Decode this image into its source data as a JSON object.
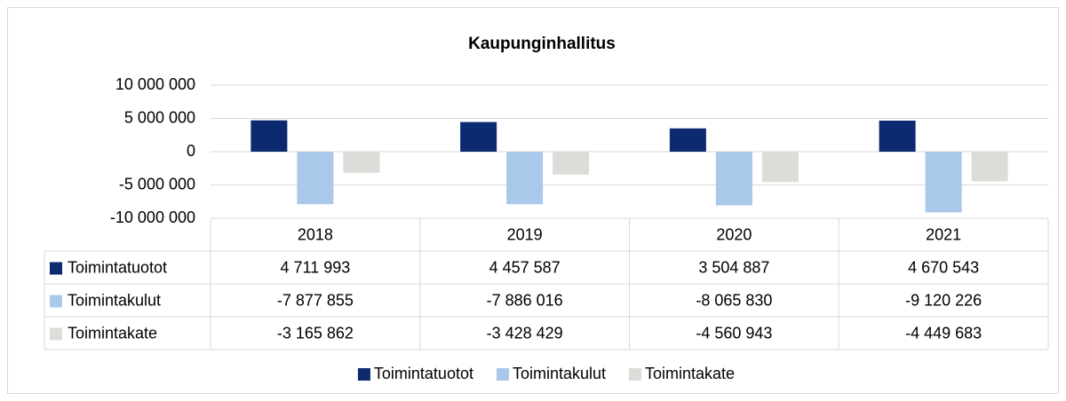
{
  "chart_data": {
    "type": "bar",
    "title": "Kaupunginhallitus",
    "categories": [
      "2018",
      "2019",
      "2020",
      "2021"
    ],
    "series": [
      {
        "name": "Toimintatuotot",
        "color": "#0b2a6f",
        "values": [
          4711993,
          4457587,
          3504887,
          4670543
        ],
        "value_labels": [
          "4 711 993",
          "4 457 587",
          "3 504 887",
          "4 670 543"
        ]
      },
      {
        "name": "Toimintakulut",
        "color": "#a9c8ea",
        "values": [
          -7877855,
          -7886016,
          -8065830,
          -9120226
        ],
        "value_labels": [
          "-7 877 855",
          "-7 886 016",
          "-8 065 830",
          "-9 120 226"
        ]
      },
      {
        "name": "Toimintakate",
        "color": "#dcdcd8",
        "values": [
          -3165862,
          -3428429,
          -4560943,
          -4449683
        ],
        "value_labels": [
          "-3 165 862",
          "-3 428 429",
          "-4 560 943",
          "-4 449 683"
        ]
      }
    ],
    "ylim": [
      -10000000,
      10000000
    ],
    "yticks": [
      {
        "value": -10000000,
        "label": "-10 000 000"
      },
      {
        "value": -5000000,
        "label": "-5 000 000"
      },
      0,
      {
        "value": 5000000,
        "label": "5 000 000"
      },
      {
        "value": 10000000,
        "label": "10 000 000"
      }
    ],
    "grid": true,
    "legend": "bottom"
  }
}
